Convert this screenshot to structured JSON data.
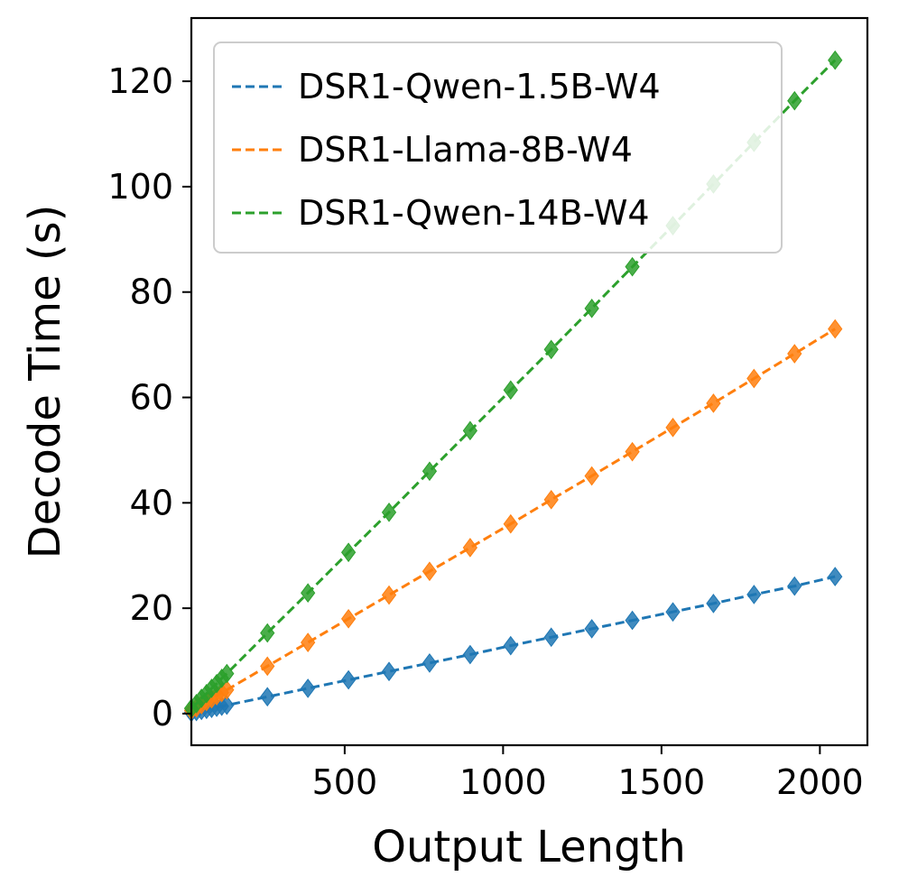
{
  "chart_data": {
    "type": "line",
    "xlabel": "Output Length",
    "ylabel": "Decode Time (s)",
    "xlim": [
      16,
      2150
    ],
    "ylim": [
      -6,
      132
    ],
    "xticks": [
      500,
      1000,
      1500,
      2000
    ],
    "yticks": [
      0,
      20,
      40,
      60,
      80,
      100,
      120
    ],
    "legend_position": "top-left",
    "x": [
      16,
      32,
      48,
      64,
      80,
      96,
      112,
      128,
      256,
      384,
      512,
      640,
      768,
      896,
      1024,
      1152,
      1280,
      1408,
      1536,
      1664,
      1792,
      1920,
      2048
    ],
    "series": [
      {
        "name": "DSR1-Qwen-1.5B-W4",
        "color": "#1f77b4",
        "values": [
          0.2,
          0.4,
          0.6,
          0.8,
          1.0,
          1.2,
          1.4,
          1.6,
          3.2,
          4.8,
          6.4,
          8.0,
          9.6,
          11.2,
          12.9,
          14.5,
          16.1,
          17.7,
          19.3,
          20.9,
          22.6,
          24.2,
          26.0
        ]
      },
      {
        "name": "DSR1-Llama-8B-W4",
        "color": "#ff7f0e",
        "values": [
          0.6,
          1.1,
          1.7,
          2.3,
          2.8,
          3.4,
          4.0,
          4.5,
          9.0,
          13.5,
          18.0,
          22.5,
          27.0,
          31.5,
          36.0,
          40.6,
          45.1,
          49.7,
          54.3,
          58.9,
          63.6,
          68.3,
          73.0
        ]
      },
      {
        "name": "DSR1-Qwen-14B-W4",
        "color": "#2ca02c",
        "values": [
          1.0,
          1.9,
          2.9,
          3.8,
          4.8,
          5.7,
          6.7,
          7.6,
          15.3,
          22.9,
          30.6,
          38.2,
          46.0,
          53.7,
          61.4,
          69.1,
          76.9,
          84.8,
          92.6,
          100.5,
          108.4,
          116.3,
          124.0
        ]
      }
    ]
  }
}
